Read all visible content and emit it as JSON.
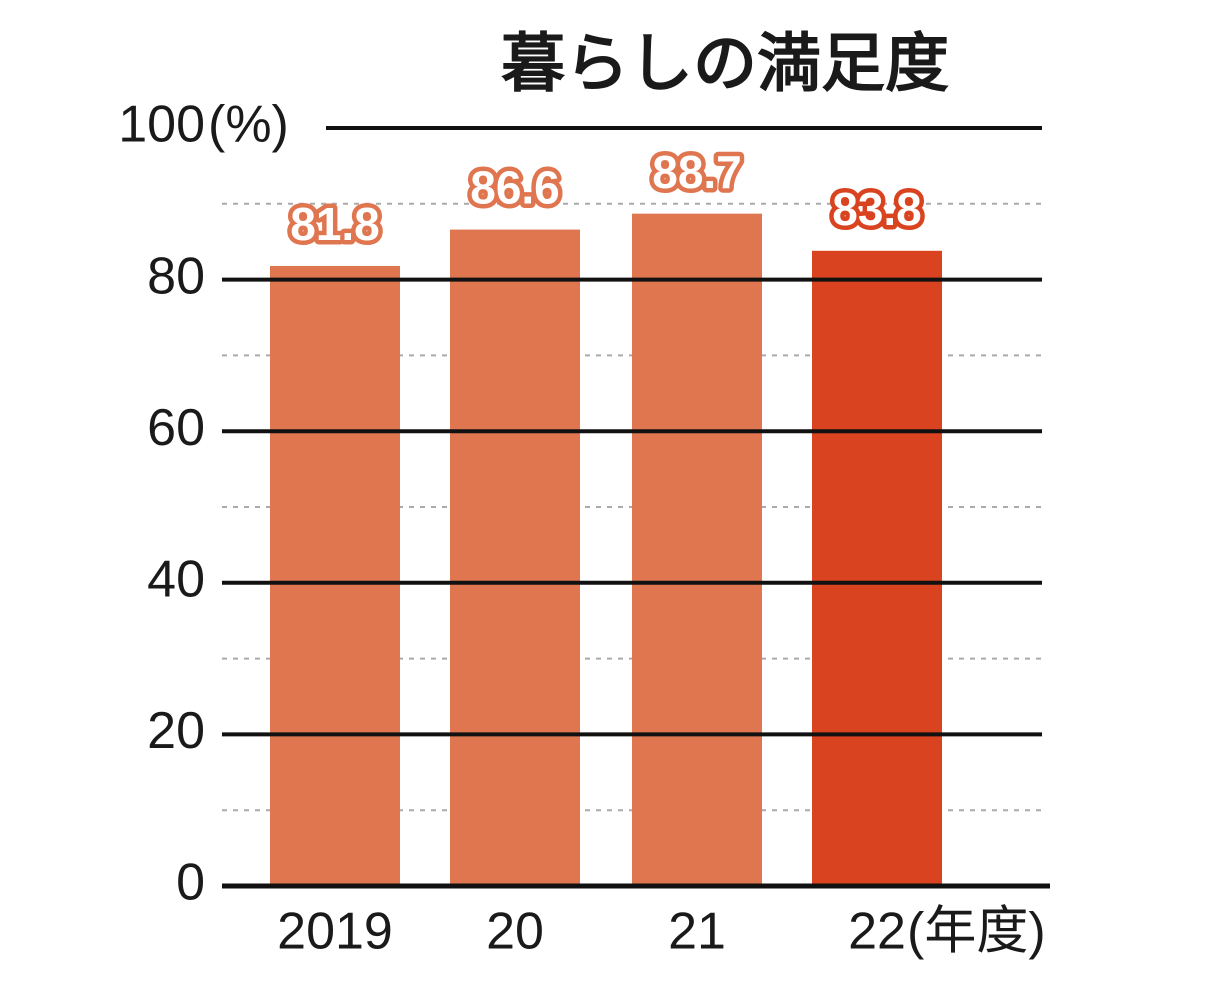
{
  "chart_data": {
    "type": "bar",
    "title": "暮らしの満足度",
    "y_unit": "(%)",
    "x_unit": "(年度)",
    "categories": [
      "2019",
      "20",
      "21",
      "22"
    ],
    "values": [
      81.8,
      86.6,
      88.7,
      83.8
    ],
    "colors": [
      "#e07650",
      "#e07650",
      "#e07650",
      "#d9431f"
    ],
    "ylim": [
      0,
      100
    ],
    "yticks": [
      0,
      20,
      40,
      60,
      80,
      100
    ],
    "minor_yticks": [
      10,
      30,
      50,
      70,
      90
    ],
    "grid": true
  }
}
